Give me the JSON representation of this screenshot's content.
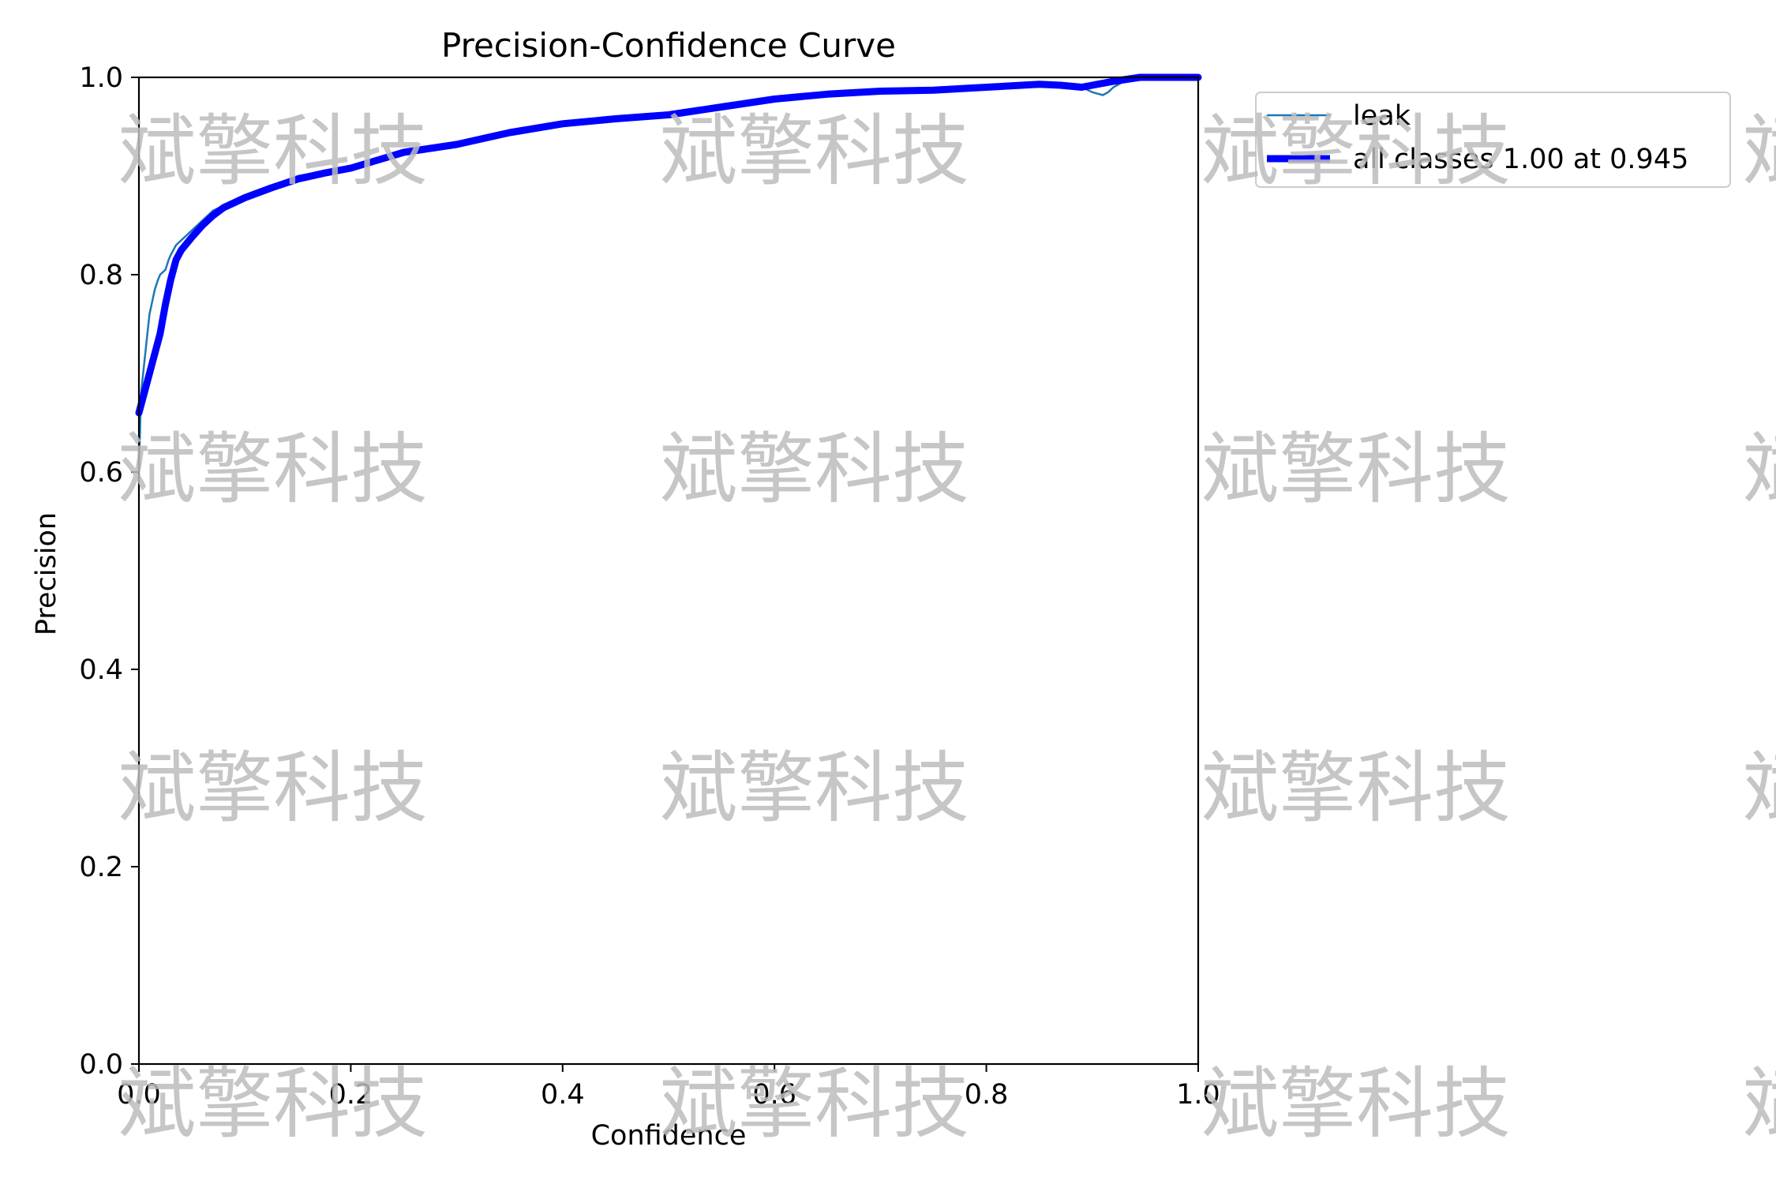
{
  "chart_data": {
    "type": "line",
    "title": "Precision-Confidence Curve",
    "xlabel": "Confidence",
    "ylabel": "Precision",
    "xlim": [
      0.0,
      1.0
    ],
    "ylim": [
      0.0,
      1.0
    ],
    "xticks": [
      "0.0",
      "0.2",
      "0.4",
      "0.6",
      "0.8",
      "1.0"
    ],
    "yticks": [
      "0.0",
      "0.2",
      "0.4",
      "0.6",
      "0.8",
      "1.0"
    ],
    "grid": false,
    "legend_position": "outside-top-right",
    "series": [
      {
        "name": "leak",
        "color": "#1f77b4",
        "x": [
          0.0,
          0.002,
          0.005,
          0.008,
          0.01,
          0.012,
          0.015,
          0.018,
          0.02,
          0.025,
          0.028,
          0.03,
          0.035,
          0.04,
          0.05,
          0.06,
          0.07,
          0.08,
          0.1,
          0.125,
          0.15,
          0.175,
          0.2,
          0.225,
          0.25,
          0.3,
          0.35,
          0.4,
          0.45,
          0.5,
          0.55,
          0.6,
          0.65,
          0.7,
          0.75,
          0.8,
          0.85,
          0.87,
          0.89,
          0.9,
          0.91,
          0.915,
          0.92,
          0.93,
          0.945,
          0.96,
          1.0
        ],
        "y": [
          0.6,
          0.68,
          0.71,
          0.74,
          0.76,
          0.77,
          0.785,
          0.795,
          0.8,
          0.805,
          0.815,
          0.82,
          0.83,
          0.835,
          0.845,
          0.855,
          0.865,
          0.87,
          0.88,
          0.89,
          0.9,
          0.905,
          0.91,
          0.918,
          0.925,
          0.933,
          0.945,
          0.955,
          0.96,
          0.963,
          0.97,
          0.978,
          0.983,
          0.985,
          0.988,
          0.99,
          0.993,
          0.993,
          0.99,
          0.985,
          0.982,
          0.985,
          0.99,
          0.996,
          1.0,
          1.0,
          1.0
        ]
      },
      {
        "name": "all classes 1.00 at 0.945",
        "color": "#0000ff",
        "x": [
          0.0,
          0.01,
          0.02,
          0.025,
          0.03,
          0.035,
          0.04,
          0.05,
          0.06,
          0.07,
          0.08,
          0.1,
          0.125,
          0.15,
          0.175,
          0.2,
          0.225,
          0.25,
          0.3,
          0.35,
          0.4,
          0.45,
          0.5,
          0.55,
          0.6,
          0.65,
          0.7,
          0.75,
          0.8,
          0.85,
          0.87,
          0.89,
          0.9,
          0.92,
          0.945,
          0.96,
          1.0
        ],
        "y": [
          0.66,
          0.7,
          0.74,
          0.77,
          0.795,
          0.815,
          0.825,
          0.838,
          0.85,
          0.86,
          0.868,
          0.878,
          0.888,
          0.897,
          0.903,
          0.908,
          0.916,
          0.924,
          0.932,
          0.944,
          0.953,
          0.958,
          0.962,
          0.97,
          0.978,
          0.983,
          0.986,
          0.987,
          0.99,
          0.993,
          0.992,
          0.99,
          0.992,
          0.996,
          1.0,
          1.0,
          1.0
        ]
      }
    ]
  },
  "watermark": "斌擎科技"
}
